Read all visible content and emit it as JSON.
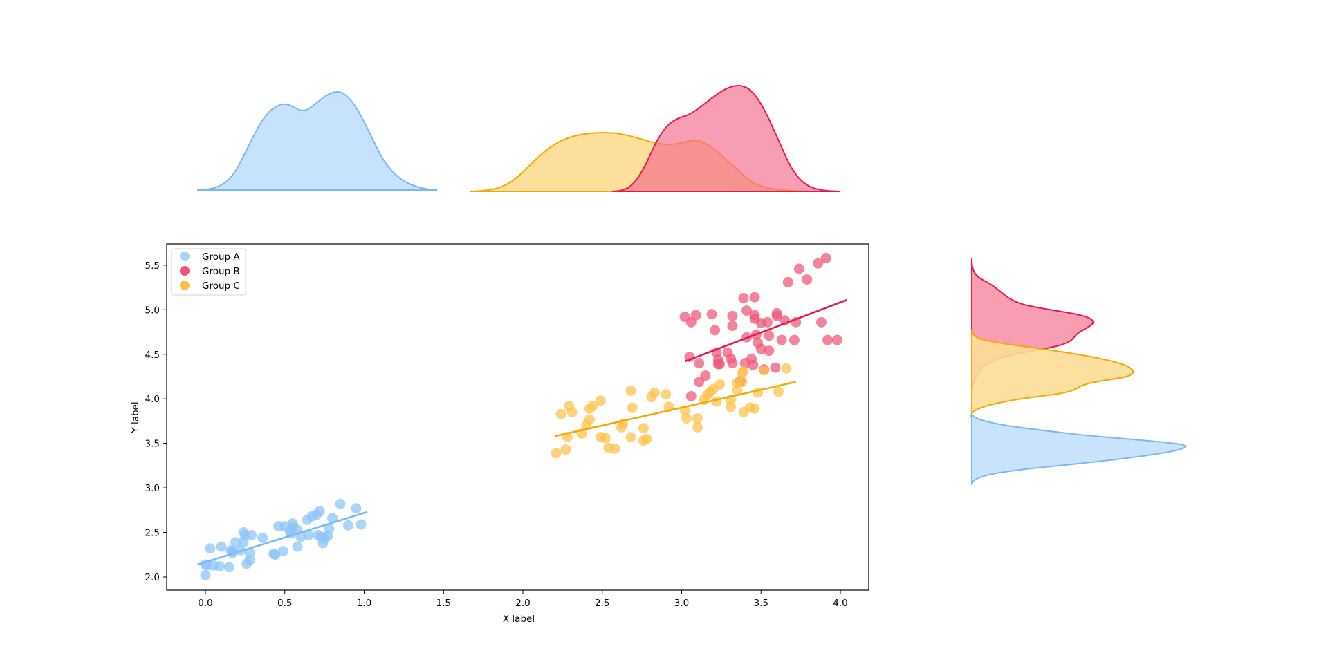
{
  "chart_data": {
    "type": "scatter",
    "title": "",
    "xlabel": "X label",
    "ylabel": "Y label",
    "xlim": [
      -0.25,
      4.25
    ],
    "ylim": [
      1.85,
      5.72
    ],
    "xticks": [
      "0.0",
      "0.5",
      "1.0",
      "1.5",
      "2.0",
      "2.5",
      "3.0",
      "3.5",
      "4.0"
    ],
    "yticks": [
      "2.0",
      "2.5",
      "3.0",
      "3.5",
      "4.0",
      "4.5",
      "5.0",
      "5.5"
    ],
    "grid": false,
    "legend_position": "upper left",
    "legend": [
      "Group A",
      "Group B",
      "Group C"
    ],
    "series": [
      {
        "name": "Group A",
        "color": "#7ab8f5",
        "marker_color": "#8cc4f7",
        "fill_color": "#c6e2fc",
        "fit_line": {
          "x": [
            -0.05,
            1.02
          ],
          "y": [
            2.14,
            2.73
          ]
        },
        "points": [
          [
            0.0,
            2.02
          ],
          [
            0.01,
            2.13
          ],
          [
            0.0,
            2.14
          ],
          [
            0.03,
            2.32
          ],
          [
            0.05,
            2.13
          ],
          [
            0.09,
            2.12
          ],
          [
            0.1,
            2.34
          ],
          [
            0.15,
            2.11
          ],
          [
            0.16,
            2.3
          ],
          [
            0.17,
            2.27
          ],
          [
            0.17,
            2.29
          ],
          [
            0.19,
            2.39
          ],
          [
            0.22,
            2.3
          ],
          [
            0.24,
            2.5
          ],
          [
            0.24,
            2.39
          ],
          [
            0.25,
            2.47
          ],
          [
            0.26,
            2.15
          ],
          [
            0.28,
            2.19
          ],
          [
            0.28,
            2.27
          ],
          [
            0.29,
            2.47
          ],
          [
            0.36,
            2.44
          ],
          [
            0.43,
            2.26
          ],
          [
            0.44,
            2.25
          ],
          [
            0.46,
            2.57
          ],
          [
            0.49,
            2.29
          ],
          [
            0.5,
            2.57
          ],
          [
            0.53,
            2.52
          ],
          [
            0.54,
            2.49
          ],
          [
            0.55,
            2.56
          ],
          [
            0.55,
            2.6
          ],
          [
            0.58,
            2.53
          ],
          [
            0.58,
            2.34
          ],
          [
            0.6,
            2.45
          ],
          [
            0.64,
            2.64
          ],
          [
            0.65,
            2.47
          ],
          [
            0.67,
            2.68
          ],
          [
            0.7,
            2.7
          ],
          [
            0.71,
            2.47
          ],
          [
            0.72,
            2.74
          ],
          [
            0.73,
            2.45
          ],
          [
            0.74,
            2.38
          ],
          [
            0.75,
            2.43
          ],
          [
            0.77,
            2.46
          ],
          [
            0.78,
            2.54
          ],
          [
            0.8,
            2.66
          ],
          [
            0.85,
            2.82
          ],
          [
            0.9,
            2.58
          ],
          [
            0.95,
            2.77
          ],
          [
            0.98,
            2.59
          ]
        ]
      },
      {
        "name": "Group B",
        "color": "#e8194a",
        "marker_color": "#ee5579",
        "fill_color": "#f59ab2",
        "fit_line": {
          "x": [
            3.02,
            4.04
          ],
          "y": [
            4.42,
            5.11
          ]
        },
        "points": [
          [
            3.02,
            4.92
          ],
          [
            3.09,
            4.94
          ],
          [
            3.06,
            4.86
          ],
          [
            3.19,
            4.95
          ],
          [
            3.32,
            4.93
          ],
          [
            3.46,
            4.94
          ],
          [
            3.21,
            4.77
          ],
          [
            3.32,
            4.82
          ],
          [
            3.39,
            5.13
          ],
          [
            3.46,
            5.14
          ],
          [
            3.41,
            4.99
          ],
          [
            3.46,
            4.9
          ],
          [
            3.5,
            4.85
          ],
          [
            3.54,
            4.86
          ],
          [
            3.6,
            4.96
          ],
          [
            3.6,
            4.93
          ],
          [
            3.67,
            5.31
          ],
          [
            3.74,
            5.46
          ],
          [
            3.79,
            5.34
          ],
          [
            3.86,
            5.52
          ],
          [
            3.91,
            5.58
          ],
          [
            3.65,
            4.88
          ],
          [
            3.41,
            4.69
          ],
          [
            3.47,
            4.72
          ],
          [
            3.48,
            4.63
          ],
          [
            3.55,
            4.71
          ],
          [
            3.5,
            4.56
          ],
          [
            3.63,
            4.66
          ],
          [
            3.71,
            4.66
          ],
          [
            3.92,
            4.66
          ],
          [
            3.44,
            4.45
          ],
          [
            3.55,
            4.54
          ],
          [
            3.59,
            4.35
          ],
          [
            3.29,
            4.52
          ],
          [
            3.31,
            4.45
          ],
          [
            3.23,
            4.39
          ],
          [
            3.24,
            4.39
          ],
          [
            3.05,
            4.47
          ],
          [
            3.11,
            4.4
          ],
          [
            3.22,
            4.52
          ],
          [
            3.23,
            4.44
          ],
          [
            3.32,
            4.4
          ],
          [
            3.4,
            4.4
          ],
          [
            3.52,
            4.33
          ],
          [
            3.37,
            4.2
          ],
          [
            3.45,
            4.38
          ],
          [
            3.11,
            4.19
          ],
          [
            3.06,
            4.03
          ],
          [
            3.15,
            4.26
          ],
          [
            3.98,
            4.66
          ],
          [
            3.88,
            4.86
          ],
          [
            3.72,
            4.86
          ]
        ]
      },
      {
        "name": "Group C",
        "color": "#f5a800",
        "marker_color": "#fcc04a",
        "fill_color": "#fcdd96",
        "fit_line": {
          "x": [
            2.2,
            3.72
          ],
          "y": [
            3.58,
            4.19
          ]
        },
        "points": [
          [
            2.21,
            3.39
          ],
          [
            2.27,
            3.43
          ],
          [
            2.24,
            3.83
          ],
          [
            2.29,
            3.92
          ],
          [
            2.31,
            3.85
          ],
          [
            2.28,
            3.57
          ],
          [
            2.37,
            3.61
          ],
          [
            2.4,
            3.71
          ],
          [
            2.42,
            3.77
          ],
          [
            2.42,
            3.89
          ],
          [
            2.44,
            3.92
          ],
          [
            2.49,
            3.57
          ],
          [
            2.49,
            3.98
          ],
          [
            2.52,
            3.56
          ],
          [
            2.54,
            3.45
          ],
          [
            2.62,
            3.68
          ],
          [
            2.63,
            3.72
          ],
          [
            2.68,
            3.57
          ],
          [
            2.69,
            3.9
          ],
          [
            2.68,
            4.09
          ],
          [
            2.76,
            3.53
          ],
          [
            2.76,
            3.67
          ],
          [
            2.81,
            4.02
          ],
          [
            2.83,
            4.07
          ],
          [
            2.92,
            3.91
          ],
          [
            3.02,
            3.87
          ],
          [
            3.03,
            3.78
          ],
          [
            3.1,
            3.78
          ],
          [
            3.1,
            3.68
          ],
          [
            3.14,
            3.99
          ],
          [
            3.16,
            4.04
          ],
          [
            3.18,
            4.08
          ],
          [
            3.2,
            4.11
          ],
          [
            3.22,
            3.97
          ],
          [
            3.24,
            4.16
          ],
          [
            3.31,
            3.99
          ],
          [
            3.31,
            3.91
          ],
          [
            3.35,
            4.1
          ],
          [
            3.35,
            4.18
          ],
          [
            3.38,
            4.19
          ],
          [
            3.38,
            4.29
          ],
          [
            3.39,
            4.31
          ],
          [
            3.39,
            3.85
          ],
          [
            3.43,
            3.9
          ],
          [
            3.46,
            3.89
          ],
          [
            3.48,
            4.07
          ],
          [
            3.52,
            4.32
          ],
          [
            3.61,
            4.08
          ],
          [
            3.66,
            4.34
          ],
          [
            2.78,
            3.55
          ],
          [
            2.58,
            3.44
          ],
          [
            2.9,
            4.05
          ]
        ]
      }
    ],
    "marginal_x_kde": [
      {
        "name": "Group A",
        "range": [
          -0.05,
          1.49
        ],
        "peaks": [
          [
            0.48,
            0.82
          ],
          [
            0.83,
            0.94
          ]
        ]
      },
      {
        "name": "Group C",
        "range": [
          1.7,
          3.99
        ],
        "peaks": [
          [
            2.52,
            0.61
          ],
          [
            3.1,
            0.55
          ]
        ]
      },
      {
        "name": "Group B",
        "range": [
          2.6,
          4.04
        ],
        "peaks": [
          [
            3.23,
            0.72
          ],
          [
            3.41,
            1.0
          ]
        ]
      }
    ],
    "marginal_y_kde": [
      {
        "name": "Group B",
        "range": [
          4.09,
          5.58
        ],
        "peak": [
          4.85,
          0.55
        ]
      },
      {
        "name": "Group C",
        "range": [
          3.79,
          4.77
        ],
        "peak": [
          4.3,
          0.81
        ]
      },
      {
        "name": "Group A",
        "range": [
          3.02,
          3.7
        ],
        "peak": [
          3.46,
          1.0
        ]
      }
    ]
  }
}
